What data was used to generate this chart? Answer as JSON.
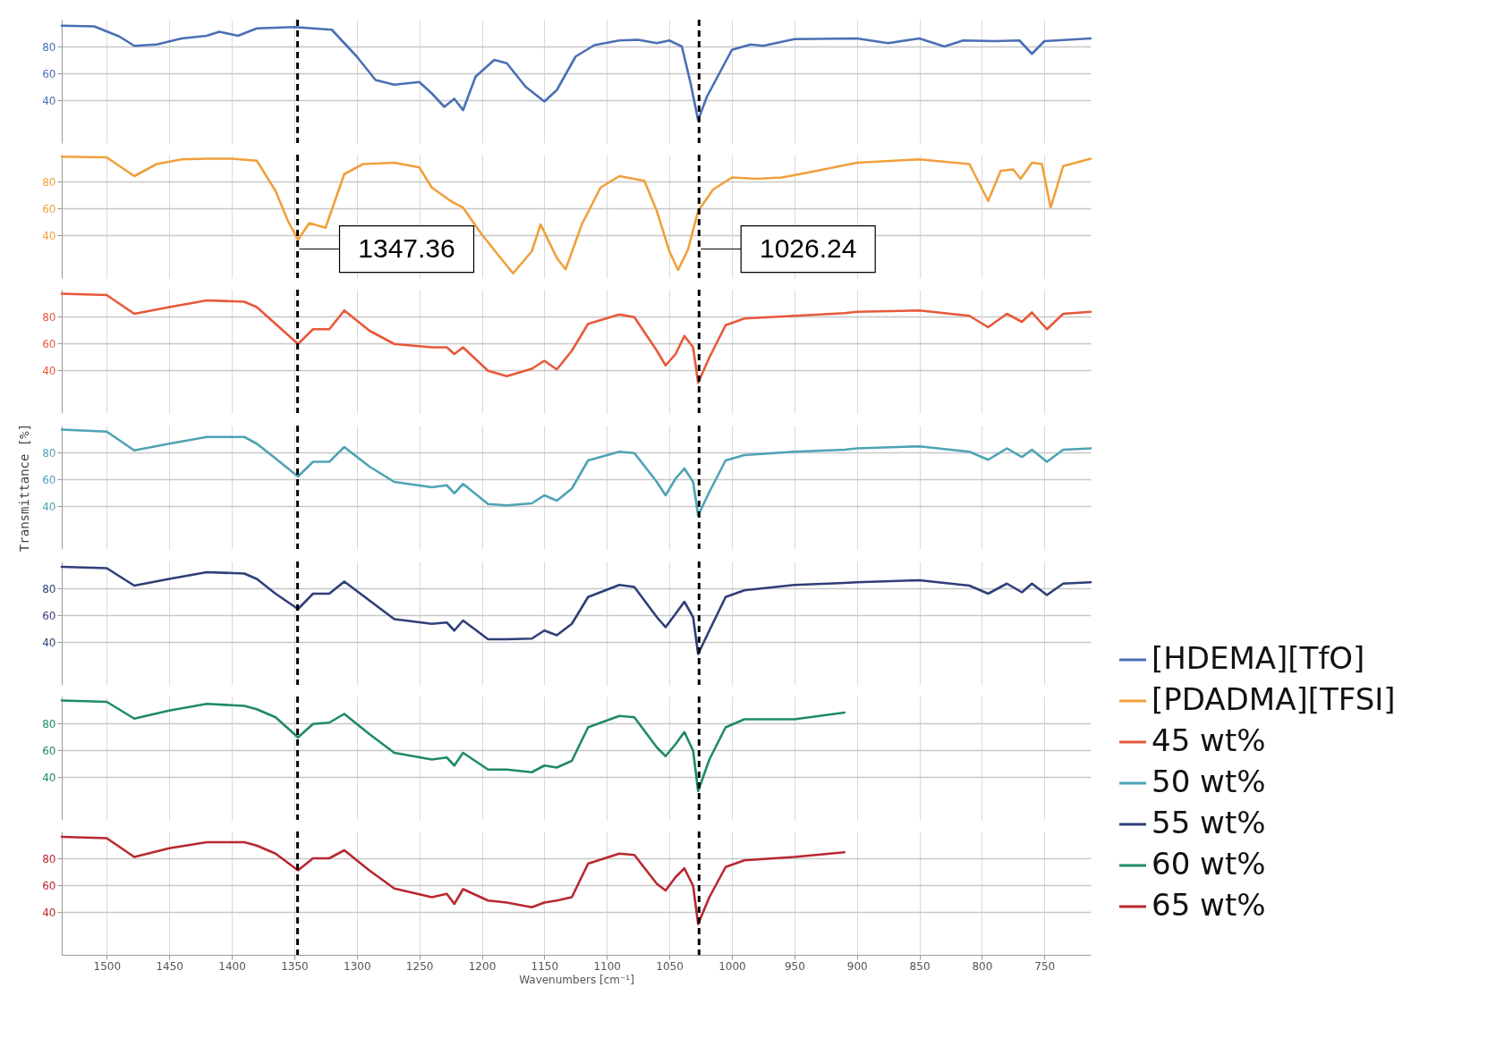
{
  "chart_data": [
    {
      "type": "line",
      "x": [
        1536,
        1510,
        1490,
        1478,
        1460,
        1440,
        1420,
        1410,
        1395,
        1380,
        1350,
        1320,
        1300,
        1285,
        1270,
        1250,
        1240,
        1230,
        1222,
        1215,
        1205,
        1190,
        1180,
        1165,
        1150,
        1140,
        1125,
        1110,
        1090,
        1075,
        1060,
        1050,
        1040,
        1033,
        1027,
        1020,
        1010,
        1000,
        985,
        975,
        950,
        900,
        875,
        850,
        830,
        815,
        790,
        770,
        760,
        750,
        713
      ],
      "series": [
        {
          "name": "[HDEMA][TfO]",
          "color": "#4a6fb5",
          "values": [
            95.5,
            95,
            87.5,
            80.5,
            81.5,
            86,
            88,
            91,
            88,
            93.5,
            94.5,
            92.5,
            72.5,
            55,
            51.5,
            53.5,
            45,
            35,
            41,
            32.5,
            57.5,
            70,
            67.5,
            50,
            39,
            47.5,
            72.5,
            81,
            84.5,
            85,
            82.5,
            84.5,
            80,
            52.5,
            25,
            42.5,
            60,
            77.5,
            81.5,
            80.5,
            85.5,
            86,
            82.5,
            86,
            80,
            84.5,
            84,
            84.5,
            74.5,
            84,
            86
          ]
        }
      ],
      "xlim": [
        1536,
        713
      ],
      "xticks": [
        1500,
        1450,
        1400,
        1350,
        1300,
        1250,
        1200,
        1150,
        1100,
        1050,
        1000,
        950,
        900,
        850,
        800,
        750
      ],
      "ylim": [
        8,
        100
      ],
      "yticks": [
        40,
        60,
        80
      ],
      "grid": true,
      "tick_labels": "y",
      "legend": "bottom right",
      "line_style": "solid",
      "ref_lines": [
        {
          "axis": "x",
          "value": 1347.36,
          "line_style": "dashed",
          "color": "#000000"
        },
        {
          "axis": "x",
          "value": 1026.24,
          "line_style": "dashed",
          "color": "#000000"
        }
      ]
    },
    {
      "type": "line",
      "x": [
        1536,
        1500,
        1478,
        1460,
        1440,
        1420,
        1400,
        1380,
        1365,
        1355,
        1347,
        1338,
        1325,
        1310,
        1295,
        1270,
        1250,
        1240,
        1225,
        1215,
        1200,
        1185,
        1175,
        1160,
        1153,
        1140,
        1133,
        1120,
        1105,
        1090,
        1070,
        1060,
        1050,
        1043,
        1035,
        1027,
        1015,
        1000,
        980,
        960,
        940,
        900,
        850,
        810,
        795,
        785,
        775,
        769,
        760,
        752,
        745,
        735,
        713
      ],
      "series": [
        {
          "name": "[PDADMA][TFSI]",
          "color": "#f0a03c",
          "values": [
            98.5,
            98,
            84,
            93,
            96.5,
            97,
            97,
            95.5,
            73,
            50.5,
            36.5,
            49,
            45.5,
            85.5,
            93,
            94,
            90.5,
            75.5,
            65.5,
            60.5,
            40.5,
            23,
            11.5,
            28,
            48,
            23,
            14.5,
            48,
            75.5,
            84,
            80.5,
            58,
            28,
            14,
            29.5,
            58,
            74,
            83,
            82,
            83,
            86.5,
            94,
            96.5,
            93,
            65.5,
            88,
            89,
            82,
            94,
            93,
            60.5,
            91.5,
            97
          ]
        }
      ],
      "xlim": [
        1536,
        713
      ],
      "xticks": [
        1500,
        1450,
        1400,
        1350,
        1300,
        1250,
        1200,
        1150,
        1100,
        1050,
        1000,
        950,
        900,
        850,
        800,
        750
      ],
      "ylim": [
        8,
        100
      ],
      "yticks": [
        40,
        60,
        80
      ],
      "grid": true,
      "tick_labels": "y",
      "legend": "bottom right",
      "line_style": "solid",
      "ref_lines": [
        {
          "axis": "x",
          "value": 1347.36,
          "label": "1347.36",
          "line_style": "dashed",
          "color": "#000000"
        },
        {
          "axis": "x",
          "value": 1026.24,
          "label": "1026.24",
          "line_style": "dashed",
          "color": "#000000"
        }
      ]
    },
    {
      "type": "line",
      "x": [
        1536,
        1500,
        1478,
        1450,
        1420,
        1390,
        1380,
        1365,
        1347,
        1335,
        1322,
        1310,
        1290,
        1270,
        1240,
        1228,
        1222,
        1215,
        1195,
        1180,
        1160,
        1150,
        1140,
        1128,
        1115,
        1090,
        1078,
        1060,
        1053,
        1045,
        1038,
        1031,
        1027,
        1018,
        1005,
        990,
        950,
        910,
        900,
        850,
        810,
        795,
        780,
        768,
        760,
        748,
        735,
        713
      ],
      "series": [
        {
          "name": "45 wt%",
          "color": "#e8583a",
          "values": [
            97,
            96,
            82,
            87,
            92,
            91,
            87,
            74.5,
            59.5,
            70.5,
            70.5,
            84.5,
            69.5,
            59.5,
            57,
            57,
            52,
            57,
            39.5,
            35.5,
            41,
            47,
            40.5,
            54.5,
            74.5,
            81.5,
            79.5,
            54.5,
            43.5,
            52,
            65.5,
            57,
            30.5,
            49.5,
            73.5,
            78.5,
            80.5,
            82.5,
            83.5,
            84.5,
            80.5,
            72,
            82,
            76,
            83,
            70.5,
            82,
            83.5
          ]
        }
      ],
      "xlim": [
        1536,
        713
      ],
      "xticks": [
        1500,
        1450,
        1400,
        1350,
        1300,
        1250,
        1200,
        1150,
        1100,
        1050,
        1000,
        950,
        900,
        850,
        800,
        750
      ],
      "ylim": [
        8,
        100
      ],
      "yticks": [
        40,
        60,
        80
      ],
      "grid": true,
      "tick_labels": "y",
      "legend": "bottom right",
      "line_style": "solid",
      "ref_lines": [
        {
          "axis": "x",
          "value": 1347.36,
          "line_style": "dashed",
          "color": "#000000"
        },
        {
          "axis": "x",
          "value": 1026.24,
          "line_style": "dashed",
          "color": "#000000"
        }
      ]
    },
    {
      "type": "line",
      "ylabel": "Transmittance [%]",
      "x": [
        1536,
        1500,
        1478,
        1450,
        1420,
        1390,
        1380,
        1365,
        1347,
        1335,
        1322,
        1310,
        1290,
        1270,
        1240,
        1228,
        1222,
        1215,
        1195,
        1180,
        1160,
        1150,
        1140,
        1128,
        1115,
        1090,
        1078,
        1060,
        1053,
        1045,
        1038,
        1031,
        1027,
        1018,
        1005,
        990,
        950,
        910,
        900,
        850,
        810,
        795,
        780,
        768,
        760,
        748,
        735,
        713
      ],
      "series": [
        {
          "name": "50 wt%",
          "color": "#4fa3b5",
          "values": [
            97,
            95.5,
            81.5,
            86.5,
            91.5,
            91.5,
            86.5,
            75.5,
            62,
            73,
            73,
            84,
            69.5,
            58,
            54,
            55.5,
            49.5,
            56.5,
            41.5,
            40.5,
            42,
            48,
            44,
            53,
            74,
            80.5,
            79.5,
            58,
            48,
            60.5,
            68,
            58,
            33,
            50.5,
            74,
            78,
            80.5,
            82,
            83,
            84.5,
            80.5,
            74.5,
            83,
            76.5,
            82,
            73,
            82,
            83
          ]
        }
      ],
      "xlim": [
        1536,
        713
      ],
      "xticks": [
        1500,
        1450,
        1400,
        1350,
        1300,
        1250,
        1200,
        1150,
        1100,
        1050,
        1000,
        950,
        900,
        850,
        800,
        750
      ],
      "ylim": [
        8,
        100
      ],
      "yticks": [
        40,
        60,
        80
      ],
      "grid": true,
      "tick_labels": "y",
      "legend": "bottom right",
      "line_style": "solid",
      "ref_lines": [
        {
          "axis": "x",
          "value": 1347.36,
          "line_style": "dashed",
          "color": "#000000"
        },
        {
          "axis": "x",
          "value": 1026.24,
          "line_style": "dashed",
          "color": "#000000"
        }
      ]
    },
    {
      "type": "line",
      "x": [
        1536,
        1500,
        1478,
        1450,
        1420,
        1390,
        1380,
        1365,
        1347,
        1335,
        1322,
        1310,
        1290,
        1270,
        1240,
        1228,
        1222,
        1215,
        1195,
        1180,
        1160,
        1150,
        1140,
        1128,
        1115,
        1090,
        1078,
        1060,
        1053,
        1045,
        1038,
        1031,
        1027,
        1018,
        1005,
        990,
        950,
        910,
        900,
        850,
        810,
        795,
        780,
        768,
        760,
        748,
        735,
        713
      ],
      "series": [
        {
          "name": "55 wt%",
          "color": "#2f3f78",
          "values": [
            96,
            95,
            82,
            87,
            92,
            91,
            87,
            76,
            64.5,
            76,
            76,
            85,
            71,
            57,
            53.5,
            54.5,
            48.5,
            56,
            42,
            42,
            42.5,
            48.5,
            45,
            53.5,
            73.5,
            82.5,
            81,
            58.5,
            51,
            61,
            70,
            58.5,
            31,
            48.5,
            73.5,
            78.5,
            82.5,
            84,
            84.5,
            86,
            82,
            76,
            83.5,
            77,
            83.5,
            75,
            83.5,
            84.5
          ]
        }
      ],
      "xlim": [
        1536,
        713
      ],
      "xticks": [
        1500,
        1450,
        1400,
        1350,
        1300,
        1250,
        1200,
        1150,
        1100,
        1050,
        1000,
        950,
        900,
        850,
        800,
        750
      ],
      "ylim": [
        8,
        100
      ],
      "yticks": [
        40,
        60,
        80
      ],
      "grid": true,
      "tick_labels": "y",
      "legend": "bottom right",
      "line_style": "solid",
      "ref_lines": [
        {
          "axis": "x",
          "value": 1347.36,
          "line_style": "dashed",
          "color": "#000000"
        },
        {
          "axis": "x",
          "value": 1026.24,
          "line_style": "dashed",
          "color": "#000000"
        }
      ]
    },
    {
      "type": "line",
      "x": [
        1536,
        1500,
        1478,
        1450,
        1420,
        1390,
        1380,
        1365,
        1347,
        1335,
        1322,
        1310,
        1290,
        1270,
        1240,
        1228,
        1222,
        1215,
        1195,
        1180,
        1160,
        1150,
        1140,
        1128,
        1115,
        1090,
        1078,
        1060,
        1053,
        1045,
        1038,
        1031,
        1027,
        1018,
        1005,
        990,
        950,
        910
      ],
      "series": [
        {
          "name": "60 wt%",
          "color": "#1f8a68",
          "values": [
            97,
            96,
            83.5,
            89.5,
            94.5,
            93,
            90.5,
            84.5,
            69.5,
            79.5,
            80.5,
            87,
            72,
            58,
            53,
            54.5,
            48.5,
            58,
            45.5,
            45.5,
            43.5,
            48.5,
            47,
            52,
            77,
            85.5,
            84.5,
            62,
            55.5,
            64.5,
            73.5,
            59.5,
            29.5,
            53,
            77,
            83,
            83,
            88
          ]
        }
      ],
      "xlim": [
        1536,
        713
      ],
      "xticks": [
        1500,
        1450,
        1400,
        1350,
        1300,
        1250,
        1200,
        1150,
        1100,
        1050,
        1000,
        950,
        900,
        850,
        800,
        750
      ],
      "ylim": [
        8,
        100
      ],
      "yticks": [
        40,
        60,
        80
      ],
      "grid": true,
      "tick_labels": "y",
      "legend": "bottom right",
      "line_style": "solid",
      "ref_lines": [
        {
          "axis": "x",
          "value": 1347.36,
          "line_style": "dashed",
          "color": "#000000"
        },
        {
          "axis": "x",
          "value": 1026.24,
          "line_style": "dashed",
          "color": "#000000"
        }
      ]
    },
    {
      "type": "line",
      "xlabel": "Wavenumbers [cm⁻¹]",
      "x": [
        1536,
        1500,
        1478,
        1450,
        1420,
        1390,
        1380,
        1365,
        1347,
        1335,
        1322,
        1310,
        1290,
        1270,
        1240,
        1228,
        1222,
        1215,
        1195,
        1180,
        1160,
        1150,
        1140,
        1128,
        1115,
        1090,
        1078,
        1060,
        1053,
        1045,
        1038,
        1031,
        1027,
        1018,
        1005,
        990,
        950,
        910
      ],
      "series": [
        {
          "name": "65 wt%",
          "color": "#b8282f",
          "values": [
            96,
            95,
            81,
            87.5,
            92,
            92,
            89.5,
            83.5,
            71,
            80,
            80,
            86,
            71,
            57.5,
            51,
            53.5,
            46,
            57,
            48.5,
            47,
            43.5,
            47,
            48.5,
            51,
            76,
            83.5,
            82.5,
            61,
            56,
            66,
            72.5,
            59.5,
            31,
            51,
            73.5,
            78.5,
            81,
            84.5
          ]
        }
      ],
      "xlim": [
        1536,
        713
      ],
      "xticks": [
        1500,
        1450,
        1400,
        1350,
        1300,
        1250,
        1200,
        1150,
        1100,
        1050,
        1000,
        950,
        900,
        850,
        800,
        750
      ],
      "ylim": [
        8,
        100
      ],
      "yticks": [
        40,
        60,
        80
      ],
      "grid": true,
      "legend": "bottom right",
      "line_style": "solid",
      "ref_lines": [
        {
          "axis": "x",
          "value": 1347.36,
          "line_style": "dashed",
          "color": "#000000"
        },
        {
          "axis": "x",
          "value": 1026.24,
          "line_style": "dashed",
          "color": "#000000"
        }
      ]
    }
  ]
}
